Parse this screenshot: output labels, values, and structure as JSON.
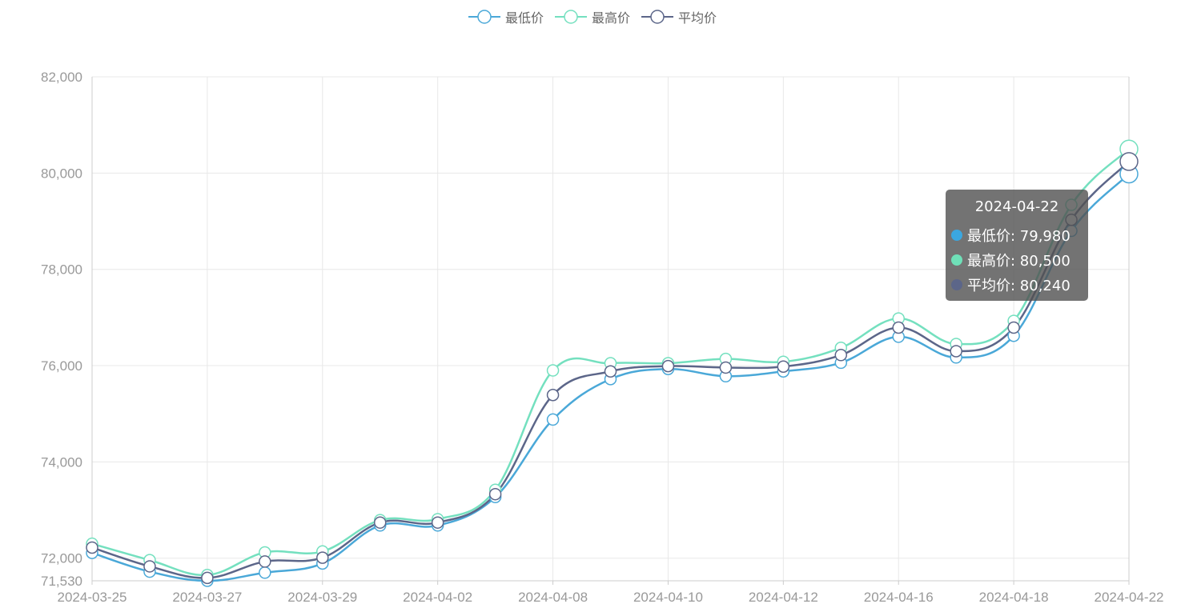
{
  "legend": [
    {
      "label": "最低价",
      "color": "#4aa8d8"
    },
    {
      "label": "最高价",
      "color": "#74e0bf"
    },
    {
      "label": "平均价",
      "color": "#5c6689"
    }
  ],
  "tooltip": {
    "title": "2024-04-22",
    "rows": [
      {
        "text": "最低价: 79,980",
        "color": "#3ba7e0"
      },
      {
        "text": "最高价: 80,500",
        "color": "#6fe0b8"
      },
      {
        "text": "平均价: 80,240",
        "color": "#5c6689"
      }
    ]
  },
  "chart_data": {
    "type": "line",
    "smooth": true,
    "grid": true,
    "legend_position": "top-center",
    "x": [
      "2024-03-25",
      "2024-03-26",
      "2024-03-27",
      "2024-03-28",
      "2024-03-29",
      "2024-03-30",
      "2024-04-02",
      "2024-04-03",
      "2024-04-08",
      "2024-04-09",
      "2024-04-10",
      "2024-04-11",
      "2024-04-12",
      "2024-04-15",
      "2024-04-16",
      "2024-04-17",
      "2024-04-18",
      "2024-04-19",
      "2024-04-22"
    ],
    "x_tick_labels": [
      "2024-03-25",
      "2024-03-27",
      "2024-03-29",
      "2024-04-02",
      "2024-04-08",
      "2024-04-10",
      "2024-04-12",
      "2024-04-16",
      "2024-04-18",
      "2024-04-22"
    ],
    "ylim": [
      71530,
      82000
    ],
    "y_ticks": [
      "72,000",
      "74,000",
      "76,000",
      "78,000",
      "80,000",
      "82,000"
    ],
    "y_min_label": "71,530",
    "series": [
      {
        "name": "最低价",
        "color": "#4aa8d8",
        "values": [
          72110,
          71720,
          71530,
          71700,
          71890,
          72680,
          72680,
          73270,
          74880,
          75720,
          75930,
          75780,
          75880,
          76060,
          76600,
          76170,
          76620,
          78800,
          79980
        ]
      },
      {
        "name": "最高价",
        "color": "#74e0bf",
        "values": [
          72300,
          71960,
          71650,
          72120,
          72140,
          72790,
          72810,
          73420,
          75900,
          76050,
          76050,
          76140,
          76080,
          76370,
          76980,
          76450,
          76930,
          79340,
          80500
        ]
      },
      {
        "name": "平均价",
        "color": "#5c6689",
        "values": [
          72220,
          71830,
          71590,
          71930,
          72010,
          72740,
          72740,
          73330,
          75390,
          75880,
          75990,
          75960,
          75980,
          76220,
          76790,
          76300,
          76790,
          79030,
          80240
        ]
      }
    ]
  }
}
